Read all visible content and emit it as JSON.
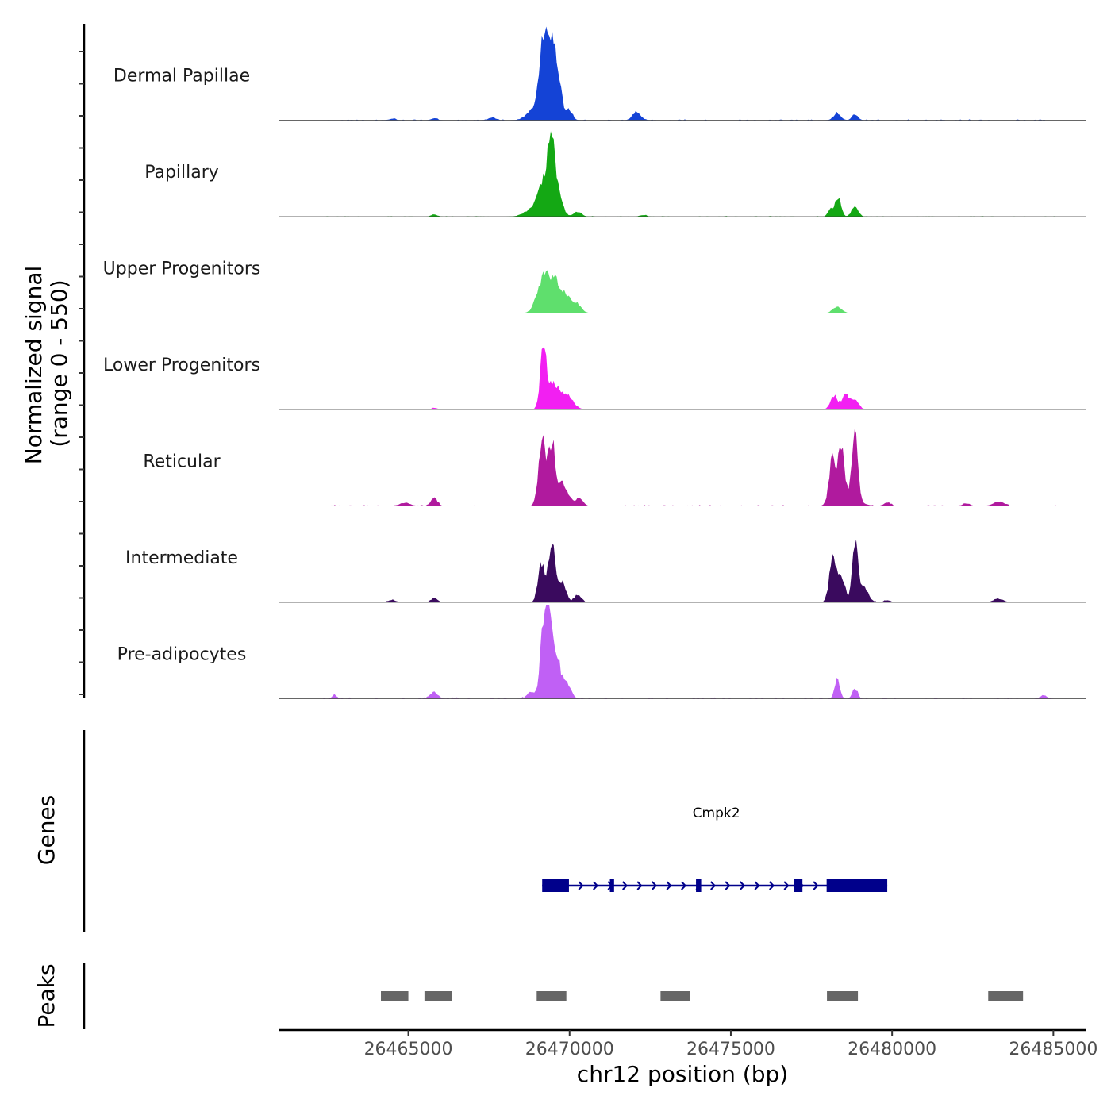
{
  "chart_data": {
    "type": "area",
    "title": "",
    "region": "chr12",
    "xlim": [
      26461000,
      26486000
    ],
    "xticks": [
      26465000,
      26470000,
      26475000,
      26480000,
      26485000
    ],
    "xtick_labels": [
      "26465000",
      "26470000",
      "26475000",
      "26480000",
      "26485000"
    ],
    "xlabel": "chr12 position (bp)",
    "ylabel": "Normalized signal",
    "ylabel_range": "(range 0 - 550)",
    "ylim": [
      0,
      550
    ],
    "genes_label": "Genes",
    "peaks_label": "Peaks",
    "tracks": [
      {
        "name": "Dermal Papillae",
        "color": "#1443d6",
        "peaks": [
          [
            26469150,
            380,
            110
          ],
          [
            26469420,
            470,
            140
          ],
          [
            26469650,
            180,
            120
          ],
          [
            26468880,
            70,
            200
          ],
          [
            26469980,
            60,
            100
          ],
          [
            26472080,
            50,
            120
          ],
          [
            26478300,
            40,
            110
          ],
          [
            26478850,
            35,
            90
          ],
          [
            26467600,
            15,
            110
          ],
          [
            26465800,
            12,
            90
          ],
          [
            26464500,
            8,
            100
          ]
        ],
        "noise": 5
      },
      {
        "name": "Papillary",
        "color": "#14a814",
        "peaks": [
          [
            26469150,
            180,
            130
          ],
          [
            26469420,
            440,
            100
          ],
          [
            26469600,
            160,
            150
          ],
          [
            26468880,
            50,
            250
          ],
          [
            26470250,
            30,
            120
          ],
          [
            26478080,
            45,
            70
          ],
          [
            26478320,
            120,
            90
          ],
          [
            26478850,
            65,
            100
          ],
          [
            26465800,
            12,
            90
          ],
          [
            26472300,
            10,
            90
          ]
        ],
        "noise": 3
      },
      {
        "name": "Upper Progenitors",
        "color": "#5fdf6d",
        "peaks": [
          [
            26469150,
            170,
            180
          ],
          [
            26469500,
            175,
            200
          ],
          [
            26469900,
            90,
            220
          ],
          [
            26470250,
            30,
            130
          ],
          [
            26478300,
            35,
            140
          ]
        ],
        "noise": 1
      },
      {
        "name": "Lower Progenitors",
        "color": "#f21ff2",
        "peaks": [
          [
            26469180,
            320,
            90
          ],
          [
            26469450,
            150,
            200
          ],
          [
            26469900,
            80,
            200
          ],
          [
            26478200,
            80,
            110
          ],
          [
            26478550,
            85,
            110
          ],
          [
            26478850,
            55,
            120
          ],
          [
            26465800,
            10,
            90
          ]
        ],
        "noise": 4
      },
      {
        "name": "Reticular",
        "color": "#b01a9e",
        "peaks": [
          [
            26469150,
            380,
            110
          ],
          [
            26469450,
            360,
            110
          ],
          [
            26469800,
            130,
            160
          ],
          [
            26470300,
            50,
            110
          ],
          [
            26478150,
            260,
            100
          ],
          [
            26478420,
            300,
            90
          ],
          [
            26478850,
            380,
            90
          ],
          [
            26478600,
            70,
            300
          ],
          [
            26465800,
            45,
            100
          ],
          [
            26464900,
            20,
            150
          ],
          [
            26479850,
            22,
            100
          ],
          [
            26482300,
            15,
            100
          ],
          [
            26483300,
            25,
            160
          ]
        ],
        "noise": 5
      },
      {
        "name": "Intermediate",
        "color": "#3a0a5e",
        "peaks": [
          [
            26469120,
            240,
            100
          ],
          [
            26469450,
            330,
            110
          ],
          [
            26469780,
            120,
            110
          ],
          [
            26470250,
            45,
            110
          ],
          [
            26478170,
            260,
            110
          ],
          [
            26478450,
            140,
            100
          ],
          [
            26478850,
            320,
            90
          ],
          [
            26479100,
            90,
            150
          ],
          [
            26465800,
            25,
            100
          ],
          [
            26464500,
            15,
            110
          ],
          [
            26483300,
            22,
            150
          ],
          [
            26479850,
            12,
            110
          ]
        ],
        "noise": 4
      },
      {
        "name": "Pre-adipocytes",
        "color": "#c060f5",
        "peaks": [
          [
            26469200,
            470,
            100
          ],
          [
            26469380,
            460,
            80
          ],
          [
            26469600,
            250,
            110
          ],
          [
            26469900,
            100,
            130
          ],
          [
            26468800,
            40,
            120
          ],
          [
            26478300,
            110,
            80
          ],
          [
            26478850,
            60,
            80
          ],
          [
            26465800,
            40,
            120
          ],
          [
            26462700,
            20,
            70
          ],
          [
            26484700,
            22,
            100
          ]
        ],
        "noise": 8
      }
    ],
    "gene": {
      "name": "Cmpk2",
      "start": 26469150,
      "end": 26479850,
      "strand": "+",
      "color": "#00008b",
      "exons": [
        [
          26469150,
          26469980
        ],
        [
          26471250,
          26471380
        ],
        [
          26473920,
          26474080
        ],
        [
          26476950,
          26477220
        ],
        [
          26477970,
          26479850
        ]
      ]
    },
    "peak_regions": [
      [
        26464150,
        26465000
      ],
      [
        26465500,
        26466350
      ],
      [
        26468980,
        26469900
      ],
      [
        26472820,
        26473740
      ],
      [
        26477980,
        26478940
      ],
      [
        26482980,
        26484060
      ]
    ],
    "peak_color": "#666666"
  }
}
